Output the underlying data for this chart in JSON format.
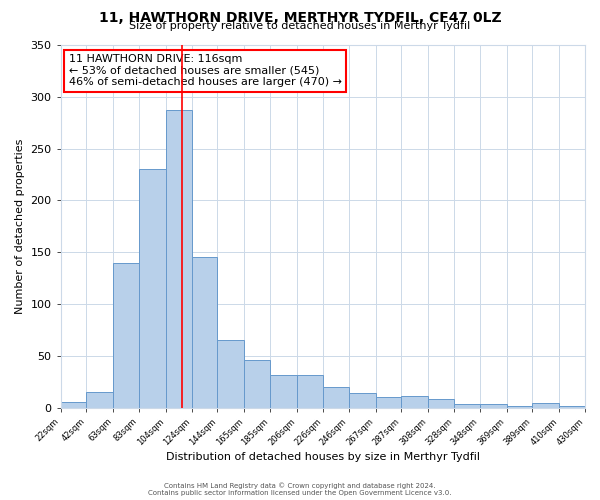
{
  "title": "11, HAWTHORN DRIVE, MERTHYR TYDFIL, CF47 0LZ",
  "subtitle": "Size of property relative to detached houses in Merthyr Tydfil",
  "xlabel": "Distribution of detached houses by size in Merthyr Tydfil",
  "ylabel": "Number of detached properties",
  "bar_left_edges": [
    22,
    42,
    63,
    83,
    104,
    124,
    144,
    165,
    185,
    206,
    226,
    246,
    267,
    287,
    308,
    328,
    348,
    369,
    389,
    410
  ],
  "bar_widths": [
    20,
    21,
    20,
    21,
    20,
    20,
    21,
    20,
    21,
    20,
    20,
    21,
    20,
    21,
    20,
    20,
    21,
    20,
    21,
    20
  ],
  "bar_heights": [
    5,
    15,
    140,
    230,
    287,
    145,
    65,
    46,
    31,
    31,
    20,
    14,
    10,
    11,
    8,
    3,
    3,
    2,
    4,
    2
  ],
  "bar_color": "#b8d0ea",
  "bar_edgecolor": "#6699cc",
  "tick_labels": [
    "22sqm",
    "42sqm",
    "63sqm",
    "83sqm",
    "104sqm",
    "124sqm",
    "144sqm",
    "165sqm",
    "185sqm",
    "206sqm",
    "226sqm",
    "246sqm",
    "267sqm",
    "287sqm",
    "308sqm",
    "328sqm",
    "348sqm",
    "369sqm",
    "389sqm",
    "410sqm",
    "430sqm"
  ],
  "tick_positions": [
    22,
    42,
    63,
    83,
    104,
    124,
    144,
    165,
    185,
    206,
    226,
    246,
    267,
    287,
    308,
    328,
    348,
    369,
    389,
    410,
    430
  ],
  "red_line_x": 116,
  "xlim_left": 22,
  "xlim_right": 430,
  "ylim": [
    0,
    350
  ],
  "yticks": [
    0,
    50,
    100,
    150,
    200,
    250,
    300,
    350
  ],
  "annotation_title": "11 HAWTHORN DRIVE: 116sqm",
  "annotation_line1": "← 53% of detached houses are smaller (545)",
  "annotation_line2": "46% of semi-detached houses are larger (470) →",
  "footer1": "Contains HM Land Registry data © Crown copyright and database right 2024.",
  "footer2": "Contains public sector information licensed under the Open Government Licence v3.0.",
  "background_color": "#ffffff",
  "grid_color": "#ccd9e8",
  "title_fontsize": 10,
  "subtitle_fontsize": 8,
  "xlabel_fontsize": 8,
  "ylabel_fontsize": 8,
  "ytick_fontsize": 8,
  "xtick_fontsize": 6,
  "annotation_fontsize": 8,
  "footer_fontsize": 5
}
